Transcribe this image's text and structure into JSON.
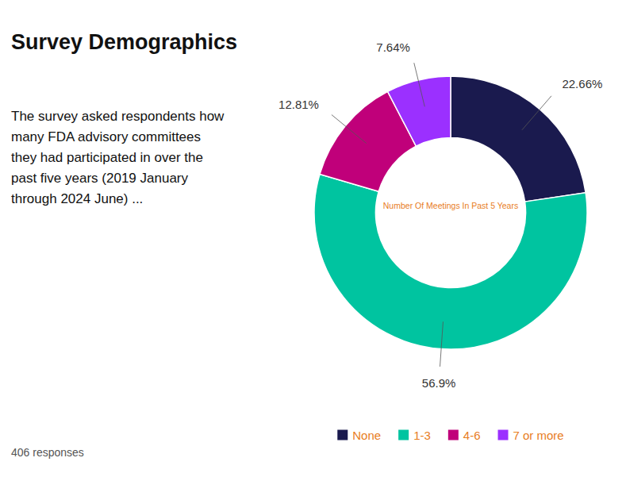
{
  "chart_data": {
    "type": "donut",
    "title": "Survey Demographics",
    "description": "The survey asked respondents how\nmany FDA advisory committees\nthey had participated in over the\npast five years (2019 January\nthrough 2024 June) ...",
    "footer": "406 responses",
    "center_label": "Number Of Meetings In Past 5 Years",
    "categories": [
      "None",
      "1-3",
      "4-6",
      "7 or more"
    ],
    "values": [
      22.66,
      56.9,
      12.81,
      7.64
    ],
    "value_labels": [
      "22.66%",
      "56.9%",
      "12.81%",
      "7.64%"
    ],
    "colors": [
      "#1a1a4e",
      "#00c4a0",
      "#c0007a",
      "#9b30ff"
    ],
    "data_labels": true,
    "legend": "bottom"
  }
}
